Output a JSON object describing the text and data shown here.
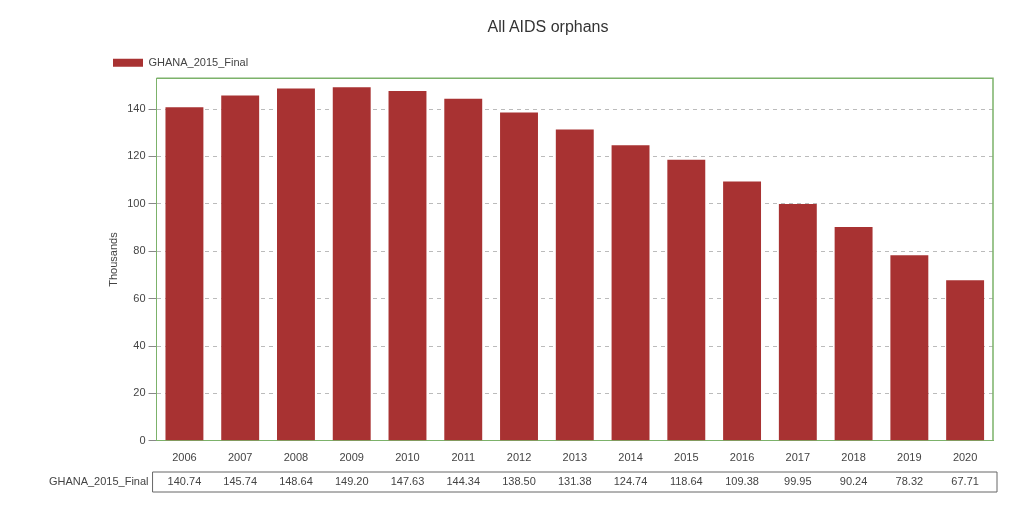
{
  "chart_data": {
    "type": "bar",
    "title": "All AIDS orphans",
    "ylabel": "Thousands",
    "categories": [
      "2006",
      "2007",
      "2008",
      "2009",
      "2010",
      "2011",
      "2012",
      "2013",
      "2014",
      "2015",
      "2016",
      "2017",
      "2018",
      "2019",
      "2020"
    ],
    "series": [
      {
        "name": "GHANA_2015_Final",
        "color": "#a83232",
        "values": [
          140.74,
          145.74,
          148.64,
          149.2,
          147.63,
          144.34,
          138.5,
          131.38,
          124.74,
          118.64,
          109.38,
          99.95,
          90.24,
          78.32,
          67.71
        ],
        "value_labels": [
          "140.74",
          "145.74",
          "148.64",
          "149.20",
          "147.63",
          "144.34",
          "138.50",
          "131.38",
          "124.74",
          "118.64",
          "109.38",
          "99.95",
          "90.24",
          "78.32",
          "67.71"
        ]
      }
    ],
    "ylim": [
      0,
      153
    ],
    "yticks": [
      0,
      20,
      40,
      60,
      80,
      100,
      120,
      140
    ],
    "grid": "y",
    "legend": "top left"
  }
}
